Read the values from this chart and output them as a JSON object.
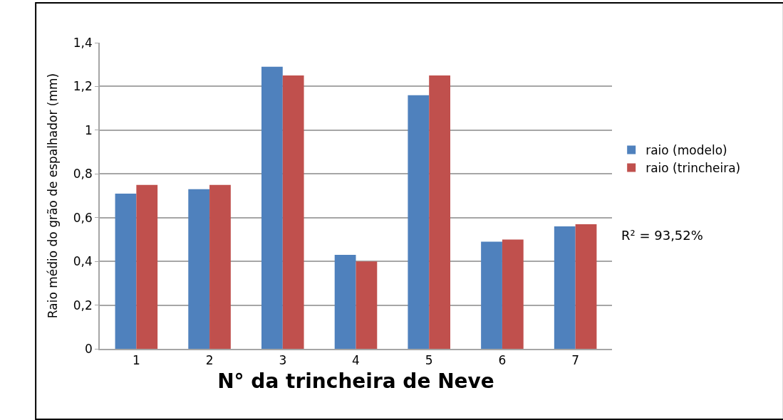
{
  "chart_data": {
    "type": "bar",
    "categories": [
      "1",
      "2",
      "3",
      "4",
      "5",
      "6",
      "7"
    ],
    "series": [
      {
        "name": "raio (modelo)",
        "color": "#4f81bd",
        "values": [
          0.71,
          0.73,
          1.29,
          0.43,
          1.16,
          0.49,
          0.56
        ]
      },
      {
        "name": "raio (trincheira)",
        "color": "#c0504d",
        "values": [
          0.75,
          0.75,
          1.25,
          0.4,
          1.25,
          0.5,
          0.57
        ]
      }
    ],
    "xlabel": "N° da trincheira de Neve",
    "ylabel": "Raio médio do grão de espalhador (mm)",
    "ylim": [
      0,
      1.4
    ],
    "yticks": [
      0,
      {
        "value": 0.2,
        "label": "0,2"
      },
      {
        "value": 0.4,
        "label": "0,4"
      },
      {
        "value": 0.6,
        "label": "0,6"
      },
      {
        "value": 0.8,
        "label": "0,8"
      },
      1,
      {
        "value": 1.2,
        "label": "1,2"
      },
      {
        "value": 1.4,
        "label": "1,4"
      }
    ],
    "grid": "y",
    "legend": "right",
    "annotations": [
      "R² = 93,52%"
    ]
  }
}
